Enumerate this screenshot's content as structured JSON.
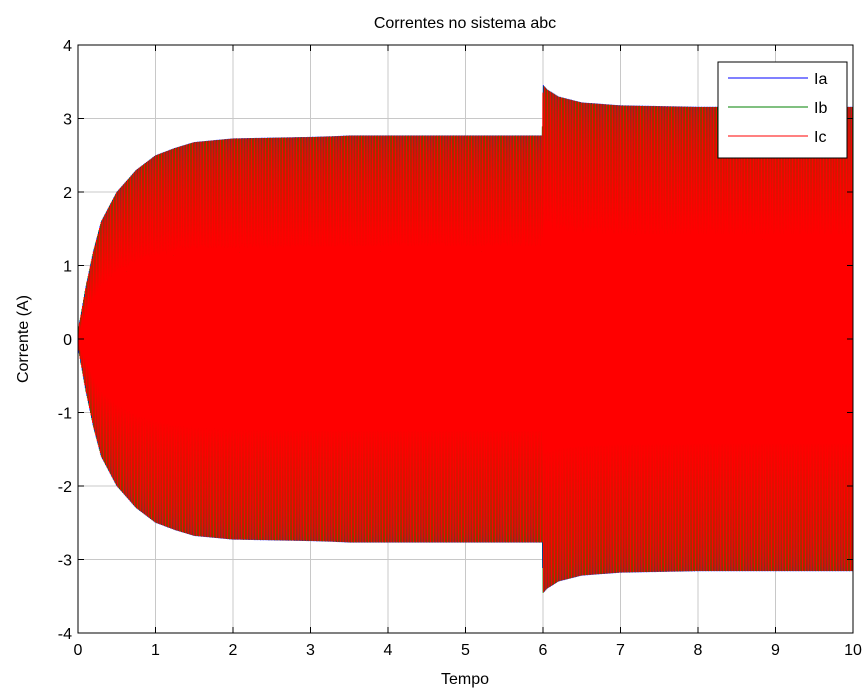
{
  "chart_data": {
    "type": "line",
    "title": "Correntes no sistema abc",
    "xlabel": "Tempo",
    "ylabel": "Corrente (A)",
    "xlim": [
      0,
      10
    ],
    "ylim": [
      -4,
      4
    ],
    "xticks": [
      "0",
      "1",
      "2",
      "3",
      "4",
      "5",
      "6",
      "7",
      "8",
      "9",
      "10"
    ],
    "yticks": [
      "-4",
      "-3",
      "-2",
      "-1",
      "0",
      "1",
      "2",
      "3",
      "4"
    ],
    "grid": true,
    "legend_position": "top-right",
    "series": [
      {
        "name": "Ia",
        "color": "#0000ff"
      },
      {
        "name": "Ib",
        "color": "#008000"
      },
      {
        "name": "Ic",
        "color": "#ff0000"
      }
    ],
    "envelope": {
      "x": [
        0,
        0.1,
        0.2,
        0.3,
        0.5,
        0.75,
        1.0,
        1.25,
        1.5,
        2.0,
        2.5,
        3.0,
        3.3,
        3.5,
        4.0,
        5.0,
        5.99,
        6.0,
        6.05,
        6.2,
        6.5,
        7.0,
        7.5,
        8.0,
        9.0,
        10.0
      ],
      "amplitude": [
        0.1,
        0.7,
        1.2,
        1.6,
        2.0,
        2.3,
        2.5,
        2.6,
        2.68,
        2.73,
        2.74,
        2.75,
        2.76,
        2.77,
        2.77,
        2.77,
        2.77,
        3.46,
        3.4,
        3.3,
        3.22,
        3.18,
        3.17,
        3.16,
        3.16,
        3.16
      ]
    },
    "frequency_hz": 50
  }
}
